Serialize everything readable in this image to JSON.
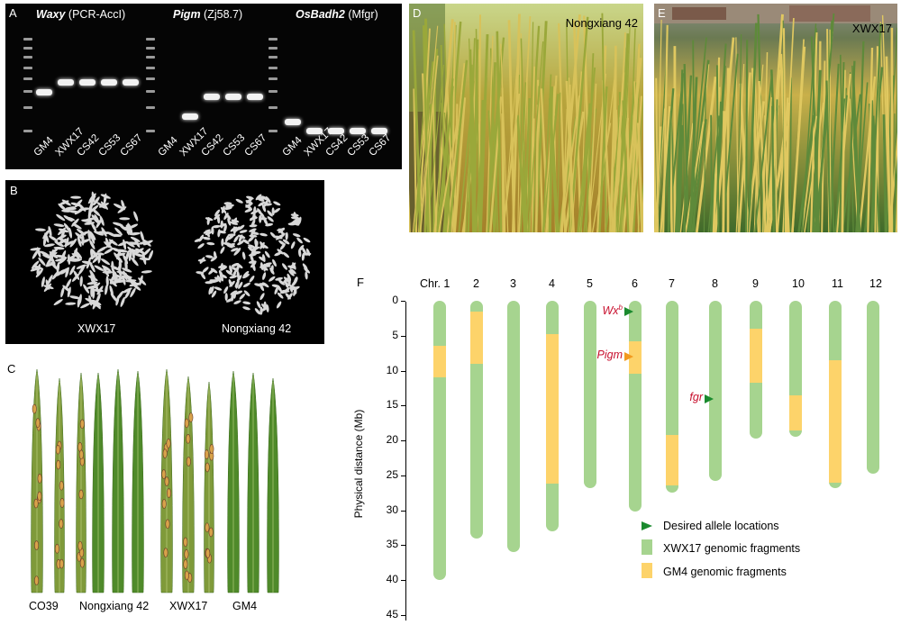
{
  "gel": {
    "label": "A",
    "groups": [
      {
        "gene": "Waxy",
        "marker": " (PCR-AccI)"
      },
      {
        "gene": "Pigm",
        "marker": " (Zj58.7)"
      },
      {
        "gene": "OsBadh2",
        "marker": " (Mfgr)"
      }
    ],
    "lanes": [
      "GM4",
      "XWX17",
      "CS42",
      "CS53",
      "CS67"
    ]
  },
  "grain": {
    "label": "B",
    "left_label": "XWX17",
    "right_label": "Nongxiang 42"
  },
  "leaf": {
    "label": "C",
    "labels": [
      "CO39",
      "Nongxiang 42",
      "XWX17",
      "GM4"
    ]
  },
  "photoD": {
    "label": "D",
    "caption": "Nongxiang 42"
  },
  "photoE": {
    "label": "E",
    "caption": "XWX17"
  },
  "chrom": {
    "label": "F",
    "ylabel": "Physical distance (Mb)",
    "chr_labels": [
      "Chr. 1",
      "2",
      "3",
      "4",
      "5",
      "6",
      "7",
      "8",
      "9",
      "10",
      "11",
      "12"
    ],
    "yticks": [
      "0",
      "5",
      "10",
      "15",
      "20",
      "25",
      "30",
      "35",
      "40",
      "45"
    ],
    "markers": [
      {
        "name": "Wx",
        "sup": "b",
        "chr": 6,
        "pos_mb": 1.5,
        "color": "#1a8a2e"
      },
      {
        "name": "Pigm",
        "sup": "",
        "chr": 6,
        "pos_mb": 8.0,
        "color": "#f29a1f"
      },
      {
        "name": "fgr",
        "sup": "",
        "chr": 8,
        "pos_mb": 14.0,
        "color": "#1a8a2e"
      }
    ],
    "legend": {
      "desired": "Desired allele locations",
      "xwx": "XWX17 genomic fragments",
      "gm4": "GM4 genomic fragments"
    },
    "colors": {
      "xwx": "#a6d48f",
      "gm4": "#fdd36a"
    }
  },
  "chart_data": {
    "type": "chromosome_map",
    "xlabel": "",
    "ylabel": "Physical distance (Mb)",
    "ylim": [
      0,
      45
    ],
    "chromosomes": [
      {
        "chr": "1",
        "length": 40,
        "gm4_segments": [
          [
            6.5,
            11
          ]
        ]
      },
      {
        "chr": "2",
        "length": 34,
        "gm4_segments": [
          [
            1.5,
            9
          ]
        ]
      },
      {
        "chr": "3",
        "length": 36,
        "gm4_segments": []
      },
      {
        "chr": "4",
        "length": 33,
        "gm4_segments": [
          [
            4.8,
            26.2
          ]
        ]
      },
      {
        "chr": "5",
        "length": 26.8,
        "gm4_segments": []
      },
      {
        "chr": "6",
        "length": 30.2,
        "gm4_segments": [
          [
            5.8,
            10.5
          ]
        ]
      },
      {
        "chr": "7",
        "length": 27.5,
        "gm4_segments": [
          [
            19.2,
            26.4
          ]
        ]
      },
      {
        "chr": "8",
        "length": 25.8,
        "gm4_segments": []
      },
      {
        "chr": "9",
        "length": 19.8,
        "gm4_segments": [
          [
            4,
            11.8
          ]
        ]
      },
      {
        "chr": "10",
        "length": 19.5,
        "gm4_segments": [
          [
            13.5,
            18.6
          ]
        ]
      },
      {
        "chr": "11",
        "length": 26.8,
        "gm4_segments": [
          [
            8.5,
            26
          ]
        ]
      },
      {
        "chr": "12",
        "length": 24.8,
        "gm4_segments": []
      }
    ]
  }
}
